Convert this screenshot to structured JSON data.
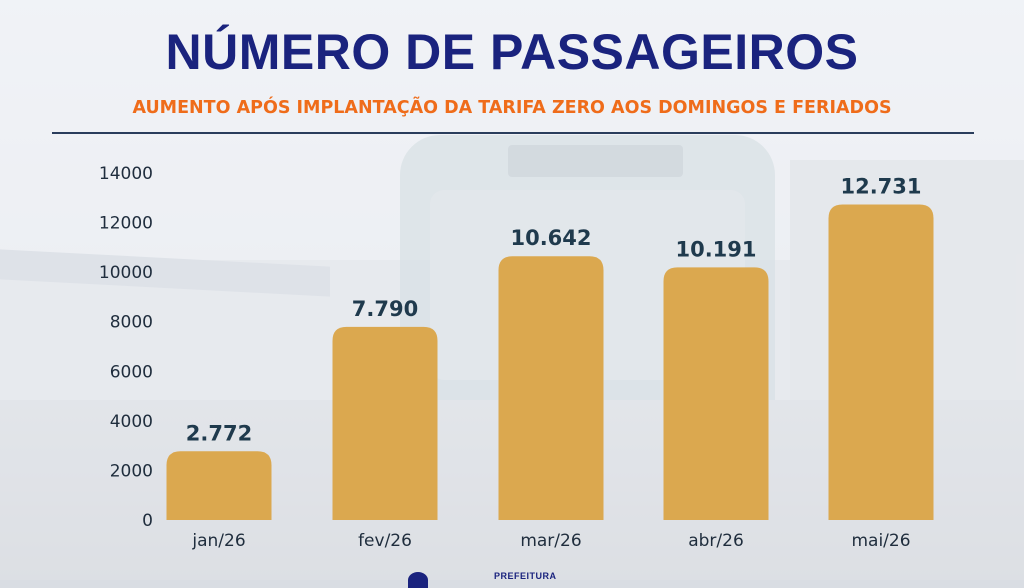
{
  "title": "NÚMERO DE PASSAGEIROS",
  "subtitle": "AUMENTO APÓS IMPLANTAÇÃO DA TARIFA ZERO AOS DOMINGOS E FERIADOS",
  "footer": {
    "text": "PREFEITURA"
  },
  "colors": {
    "title": "#1a237e",
    "subtitle": "#ef6c1a",
    "bar": "#dba84f",
    "label": "#1f3a4d"
  },
  "chart_data": {
    "type": "bar",
    "title": "NÚMERO DE PASSAGEIROS",
    "subtitle": "AUMENTO APÓS IMPLANTAÇÃO DA TARIFA ZERO AOS DOMINGOS E FERIADOS",
    "categories": [
      "jan/26",
      "fev/26",
      "mar/26",
      "abr/26",
      "mai/26"
    ],
    "values": [
      2772,
      7790,
      10642,
      10191,
      12731
    ],
    "data_labels": [
      "2.772",
      "7.790",
      "10.642",
      "10.191",
      "12.731"
    ],
    "yticks": [
      "0",
      "2000",
      "4000",
      "6000",
      "8000",
      "10000",
      "12000",
      "14000"
    ],
    "ylim": [
      0,
      14000
    ],
    "grid": false,
    "legend": "none"
  }
}
